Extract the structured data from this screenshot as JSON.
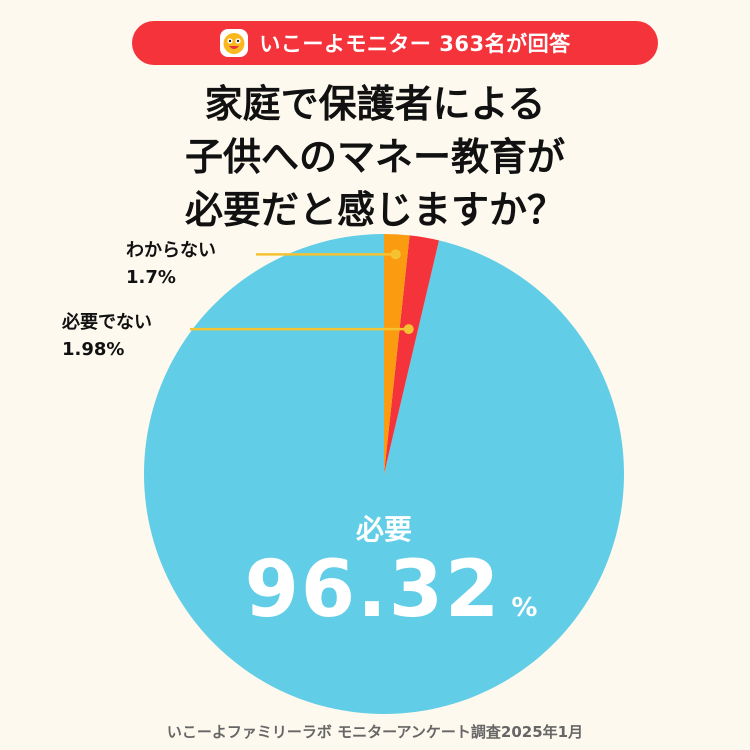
{
  "badge": {
    "text": "いこーよモニター 363名が回答",
    "logo_icon": "smiling-face-logo-icon"
  },
  "title": {
    "lines": [
      "家庭で保護者による",
      "子供へのマネー教育が",
      "必要だと感じますか？"
    ]
  },
  "chart_data": {
    "type": "pie",
    "slices": [
      {
        "label": "必要",
        "value": 96.32,
        "value_label": "96.32",
        "unit": "%",
        "color": "#62cde6"
      },
      {
        "label": "必要でない",
        "value": 1.98,
        "value_label": "1.98%",
        "color": "#f4333a"
      },
      {
        "label": "わからない",
        "value": 1.7,
        "value_label": "1.7%",
        "color": "#fb9b0f"
      }
    ],
    "leader_color": "#f5c331",
    "direction": "counterclockwise",
    "start": "top"
  },
  "footer": {
    "text": "いこーよファミリーラボ モニターアンケート調査2025年1月"
  }
}
